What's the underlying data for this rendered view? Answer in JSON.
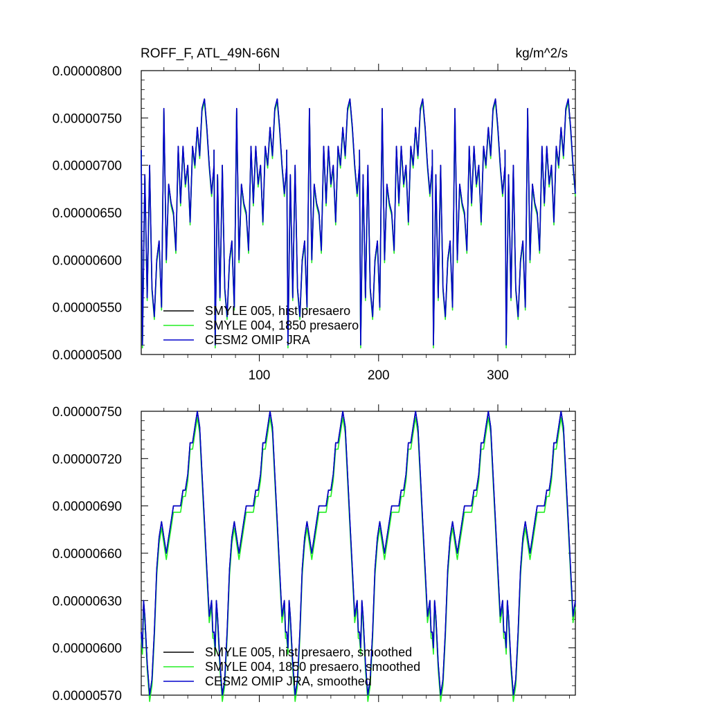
{
  "chart_data": [
    {
      "type": "line",
      "title": "ROFF_F, ATL_49N-66N",
      "units": "kg/m^2/s",
      "xlim": [
        1,
        365
      ],
      "ylim": [
        5e-06,
        8e-06
      ],
      "xticks": [
        100,
        200,
        300
      ],
      "xtick_labels": [
        "100",
        "200",
        "300"
      ],
      "yticks": [
        5e-06,
        5.5e-06,
        6e-06,
        6.5e-06,
        7e-06,
        7.5e-06,
        8e-06
      ],
      "ytick_labels": [
        "0.00000500",
        "0.00000550",
        "0.00000600",
        "0.00000650",
        "0.00000700",
        "0.00000750",
        "0.00000800"
      ],
      "legend_position": "bottom-left",
      "legend": [
        "SMYLE 005, hist presaero",
        "SMYLE 004, 1850 presaero",
        "CESM2 OMIP JRA"
      ],
      "colors": [
        "#000000",
        "#22ee22",
        "#0000cc"
      ],
      "period_days": 61,
      "series": [
        {
          "name": "SMYLE 005, hist presaero",
          "x": [
            1,
            2,
            4,
            6,
            8,
            10,
            12,
            14,
            16,
            18,
            20,
            22,
            24,
            26,
            28,
            30,
            32,
            34,
            36,
            38,
            40,
            42,
            44,
            46,
            48,
            50,
            52,
            54,
            56,
            58,
            60,
            62
          ],
          "values": [
            7.16e-06,
            5.1e-06,
            6.9e-06,
            5.6e-06,
            7e-06,
            5.7e-06,
            5.4e-06,
            6e-06,
            6.2e-06,
            5.5e-06,
            7.6e-06,
            6e-06,
            6.8e-06,
            6.6e-06,
            6.5e-06,
            6.1e-06,
            7.2e-06,
            6.6e-06,
            7.2e-06,
            6.8e-06,
            7e-06,
            6.4e-06,
            7.2e-06,
            7e-06,
            7.4e-06,
            7.1e-06,
            7.6e-06,
            7.7e-06,
            7.4e-06,
            7e-06,
            6.7e-06,
            7e-06
          ],
          "offset": 0.0
        },
        {
          "name": "SMYLE 004, 1850 presaero",
          "x": [
            1,
            2,
            4,
            6,
            8,
            10,
            12,
            14,
            16,
            18,
            20,
            22,
            24,
            26,
            28,
            30,
            32,
            34,
            36,
            38,
            40,
            42,
            44,
            46,
            48,
            50,
            52,
            54,
            56,
            58,
            60,
            62
          ],
          "values": [
            7.16e-06,
            5.1e-06,
            6.9e-06,
            5.6e-06,
            7e-06,
            5.7e-06,
            5.4e-06,
            6e-06,
            6.2e-06,
            5.5e-06,
            7.6e-06,
            6e-06,
            6.8e-06,
            6.6e-06,
            6.5e-06,
            6.1e-06,
            7.2e-06,
            6.6e-06,
            7.2e-06,
            6.8e-06,
            7e-06,
            6.4e-06,
            7.2e-06,
            7e-06,
            7.4e-06,
            7.1e-06,
            7.6e-06,
            7.7e-06,
            7.4e-06,
            7e-06,
            6.7e-06,
            7e-06
          ],
          "offset": -3e-08
        },
        {
          "name": "CESM2 OMIP JRA",
          "x": [
            1,
            2,
            4,
            6,
            8,
            10,
            12,
            14,
            16,
            18,
            20,
            22,
            24,
            26,
            28,
            30,
            32,
            34,
            36,
            38,
            40,
            42,
            44,
            46,
            48,
            50,
            52,
            54,
            56,
            58,
            60,
            62
          ],
          "values": [
            7.16e-06,
            5.1e-06,
            6.9e-06,
            5.6e-06,
            7e-06,
            5.7e-06,
            5.4e-06,
            6e-06,
            6.2e-06,
            5.5e-06,
            7.6e-06,
            6e-06,
            6.8e-06,
            6.6e-06,
            6.5e-06,
            6.1e-06,
            7.2e-06,
            6.6e-06,
            7.2e-06,
            6.8e-06,
            7e-06,
            6.4e-06,
            7.2e-06,
            7e-06,
            7.4e-06,
            7.1e-06,
            7.6e-06,
            7.7e-06,
            7.4e-06,
            7e-06,
            6.7e-06,
            7e-06
          ],
          "offset": 0.0
        }
      ]
    },
    {
      "type": "line",
      "title": "",
      "units": "",
      "xlim": [
        1,
        365
      ],
      "ylim": [
        5.7e-06,
        7.5e-06
      ],
      "xticks": [
        100,
        200,
        300
      ],
      "xtick_labels": [],
      "yticks": [
        5.7e-06,
        6e-06,
        6.3e-06,
        6.6e-06,
        6.9e-06,
        7.2e-06,
        7.5e-06
      ],
      "ytick_labels": [
        "0.00000570",
        "0.00000600",
        "0.00000630",
        "0.00000660",
        "0.00000690",
        "0.00000720",
        "0.00000750"
      ],
      "legend_position": "bottom-left",
      "legend": [
        "SMYLE 005, hist presaero, smoothed",
        "SMYLE 004, 1850 presaero, smoothed",
        "CESM2 OMIP JRA, smoothed"
      ],
      "colors": [
        "#000000",
        "#22ee22",
        "#0000cc"
      ],
      "period_days": 61,
      "series": [
        {
          "name": "SMYLE 005, hist presaero, smoothed",
          "x": [
            1,
            2,
            3,
            4,
            6,
            8,
            10,
            12,
            14,
            16,
            18,
            20,
            22,
            24,
            26,
            28,
            30,
            32,
            34,
            36,
            38,
            40,
            42,
            44,
            46,
            48,
            50,
            52,
            54,
            56,
            58,
            60,
            61
          ],
          "values": [
            6.1e-06,
            6e-06,
            6.3e-06,
            6.2e-06,
            5.9e-06,
            5.7e-06,
            5.8e-06,
            6.1e-06,
            6.5e-06,
            6.7e-06,
            6.8e-06,
            6.7e-06,
            6.6e-06,
            6.7e-06,
            6.8e-06,
            6.9e-06,
            6.9e-06,
            6.9e-06,
            6.9e-06,
            7e-06,
            7e-06,
            7.1e-06,
            7.3e-06,
            7.3e-06,
            7.4e-06,
            7.5e-06,
            7.4e-06,
            7.1e-06,
            6.8e-06,
            6.5e-06,
            6.2e-06,
            6.3e-06,
            6.1e-06
          ],
          "offset": 0.0
        },
        {
          "name": "SMYLE 004, 1850 presaero, smoothed",
          "x": [
            1,
            2,
            3,
            4,
            6,
            8,
            10,
            12,
            14,
            16,
            18,
            20,
            22,
            24,
            26,
            28,
            30,
            32,
            34,
            36,
            38,
            40,
            42,
            44,
            46,
            48,
            50,
            52,
            54,
            56,
            58,
            60,
            61
          ],
          "values": [
            6.1e-06,
            6e-06,
            6.3e-06,
            6.2e-06,
            5.9e-06,
            5.7e-06,
            5.8e-06,
            6.1e-06,
            6.5e-06,
            6.7e-06,
            6.8e-06,
            6.7e-06,
            6.6e-06,
            6.7e-06,
            6.8e-06,
            6.9e-06,
            6.9e-06,
            6.9e-06,
            6.9e-06,
            7e-06,
            7e-06,
            7.1e-06,
            7.3e-06,
            7.3e-06,
            7.4e-06,
            7.5e-06,
            7.4e-06,
            7.1e-06,
            6.8e-06,
            6.5e-06,
            6.2e-06,
            6.3e-06,
            6.1e-06
          ],
          "offset": -4e-08
        },
        {
          "name": "CESM2 OMIP JRA, smoothed",
          "x": [
            1,
            2,
            3,
            4,
            6,
            8,
            10,
            12,
            14,
            16,
            18,
            20,
            22,
            24,
            26,
            28,
            30,
            32,
            34,
            36,
            38,
            40,
            42,
            44,
            46,
            48,
            50,
            52,
            54,
            56,
            58,
            60,
            61
          ],
          "values": [
            6.1e-06,
            6e-06,
            6.3e-06,
            6.2e-06,
            5.9e-06,
            5.7e-06,
            5.8e-06,
            6.1e-06,
            6.5e-06,
            6.7e-06,
            6.8e-06,
            6.7e-06,
            6.6e-06,
            6.7e-06,
            6.8e-06,
            6.9e-06,
            6.9e-06,
            6.9e-06,
            6.9e-06,
            7e-06,
            7e-06,
            7.1e-06,
            7.3e-06,
            7.3e-06,
            7.4e-06,
            7.5e-06,
            7.4e-06,
            7.1e-06,
            6.8e-06,
            6.5e-06,
            6.2e-06,
            6.3e-06,
            6.1e-06
          ],
          "offset": 0.0
        }
      ]
    }
  ]
}
